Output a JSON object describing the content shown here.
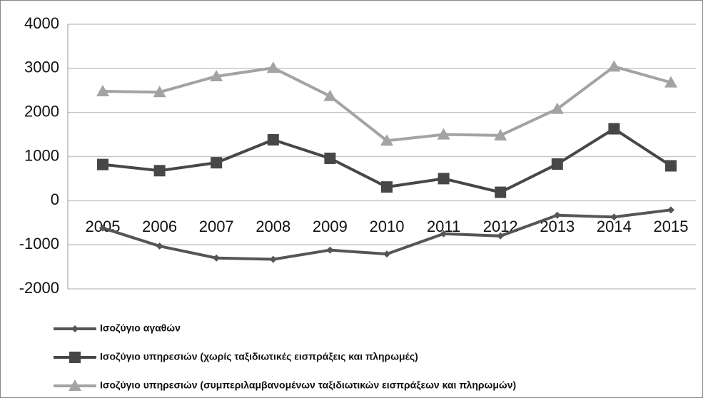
{
  "chart_data": {
    "type": "line",
    "categories": [
      "2005",
      "2006",
      "2007",
      "2008",
      "2009",
      "2010",
      "2011",
      "2012",
      "2013",
      "2014",
      "2015"
    ],
    "series": [
      {
        "name": "Ισοζύγιο αγαθών",
        "color": "#555555",
        "marker": "diamond",
        "values": [
          -620,
          -1030,
          -1300,
          -1330,
          -1120,
          -1210,
          -750,
          -800,
          -330,
          -370,
          -210
        ]
      },
      {
        "name": "Ισοζύγιο υπηρεσιών (χωρίς ταξιδιωτικές εισπράξεις και πληρωμές)",
        "color": "#474747",
        "marker": "square",
        "values": [
          820,
          680,
          860,
          1380,
          960,
          310,
          500,
          190,
          830,
          1630,
          790
        ]
      },
      {
        "name": "Ισοζύγιο υπηρεσιών (συμπεριλαμβανομένων ταξιδιωτικών εισπράξεων και πληρωμών)",
        "color": "#a3a3a3",
        "marker": "triangle",
        "values": [
          2480,
          2460,
          2820,
          3010,
          2370,
          1360,
          1500,
          1480,
          2080,
          3040,
          2680
        ]
      }
    ],
    "ylim": [
      -2000,
      4000
    ],
    "yticks": [
      -2000,
      -1000,
      0,
      1000,
      2000,
      3000,
      4000
    ],
    "grid": true,
    "legend": "bottom"
  }
}
